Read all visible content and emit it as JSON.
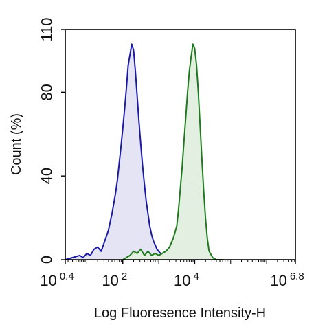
{
  "chart_data": {
    "type": "area",
    "xlabel": "Log Fluoresence Intensity-H",
    "ylabel": "Count  (%)",
    "x_scale": "log10",
    "xlim_log10": [
      0.4,
      6.8
    ],
    "ylim": [
      0,
      110
    ],
    "x_ticks": [
      {
        "base": "10",
        "exp": "0.4",
        "value_log10": 0.4
      },
      {
        "base": "10",
        "exp": "2",
        "value_log10": 2
      },
      {
        "base": "10",
        "exp": "4",
        "value_log10": 4
      },
      {
        "base": "10",
        "exp": "6.8",
        "value_log10": 6.8
      }
    ],
    "y_ticks": [
      {
        "label": "0",
        "value": 0
      },
      {
        "label": "40",
        "value": 40
      },
      {
        "label": "80",
        "value": 80
      },
      {
        "label": "110",
        "value": 110
      }
    ],
    "grid": false,
    "legend": "none",
    "series": [
      {
        "color": "#1a1aa6",
        "fill": "#e4e4f5",
        "x_log10": [
          0.4,
          0.6,
          0.8,
          0.9,
          1.0,
          1.1,
          1.2,
          1.3,
          1.4,
          1.5,
          1.6,
          1.7,
          1.75,
          1.8,
          1.85,
          1.9,
          1.95,
          2.0,
          2.05,
          2.1,
          2.15,
          2.2,
          2.25,
          2.3,
          2.35,
          2.4,
          2.45,
          2.5,
          2.55,
          2.6,
          2.65,
          2.7,
          2.75,
          2.8,
          2.85,
          2.9,
          2.95,
          3.0,
          3.05,
          3.1,
          3.2,
          3.3,
          3.4,
          3.5,
          3.6,
          3.8,
          4.0,
          4.2
        ],
        "y": [
          0,
          1,
          2,
          1,
          3,
          2,
          5,
          6,
          4,
          9,
          14,
          22,
          27,
          32,
          38,
          46,
          54,
          63,
          72,
          82,
          93,
          98,
          103,
          100,
          90,
          78,
          66,
          55,
          45,
          36,
          28,
          22,
          16,
          12,
          9,
          7,
          5,
          4,
          3,
          2.5,
          2,
          1.5,
          1,
          1,
          0.5,
          0.3,
          0,
          0
        ]
      },
      {
        "color": "#1e7a1e",
        "fill": "#e3f0e1",
        "x_log10": [
          2.0,
          2.2,
          2.3,
          2.4,
          2.5,
          2.6,
          2.7,
          2.8,
          2.9,
          3.0,
          3.1,
          3.2,
          3.3,
          3.4,
          3.5,
          3.55,
          3.6,
          3.65,
          3.7,
          3.75,
          3.8,
          3.85,
          3.9,
          3.95,
          4.0,
          4.05,
          4.1,
          4.15,
          4.2,
          4.25,
          4.3,
          4.35,
          4.4,
          4.5,
          4.6,
          4.7,
          4.8
        ],
        "y": [
          0,
          2,
          4,
          3,
          5,
          2,
          4,
          2,
          3,
          2,
          3,
          4,
          6,
          10,
          16,
          24,
          34,
          44,
          56,
          68,
          80,
          90,
          97,
          103,
          101,
          93,
          80,
          64,
          48,
          33,
          20,
          10,
          4,
          1,
          0,
          0,
          0
        ]
      }
    ]
  }
}
